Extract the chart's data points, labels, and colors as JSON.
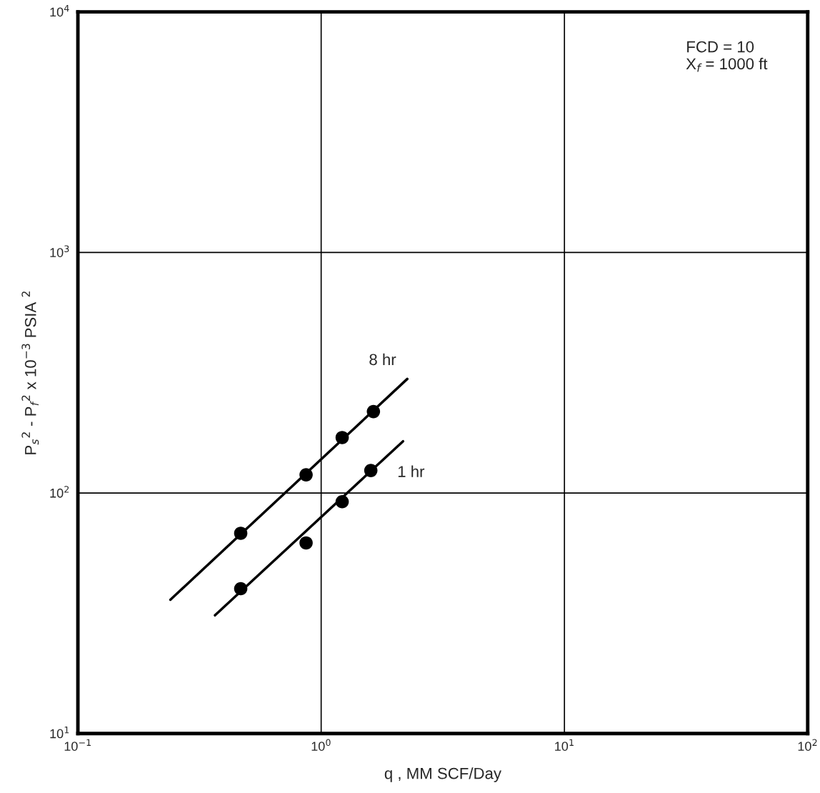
{
  "chart_data": {
    "type": "scatter",
    "xlabel": "q , MM SCF/Day",
    "ylabel": "P$_{s}$$^{2}$ - P$_{f}$$^{2}$ x 10$^{−3}$ PSIA $^{2}$",
    "log": "xy",
    "grid": true,
    "legend": false,
    "xlim": [
      0.1,
      100
    ],
    "ylim": [
      10,
      10000
    ],
    "xticks": [
      {
        "value": 0.1,
        "label": "10$^{−1}$"
      },
      {
        "value": 1,
        "label": "10$^{0}$"
      },
      {
        "value": 10,
        "label": "10$^{1}$"
      },
      {
        "value": 100,
        "label": "10$^{2}$"
      }
    ],
    "yticks": [
      {
        "value": 10,
        "label": "10$^{1}$"
      },
      {
        "value": 100,
        "label": "10$^{2}$"
      },
      {
        "value": 1000,
        "label": "10$^{3}$"
      },
      {
        "value": 10000,
        "label": "10$^{4}$"
      }
    ],
    "series": [
      {
        "color": "#000000",
        "marker": "circle",
        "x": [
          0.467,
          0.867,
          1.22,
          1.64
        ],
        "values": [
          68,
          119,
          170,
          218
        ]
      },
      {
        "color": "#000000",
        "marker": "circle",
        "x": [
          0.467,
          0.867,
          1.22,
          1.6
        ],
        "values": [
          40,
          62,
          92,
          124
        ]
      },
      {
        "type": "line",
        "name": "8 hr",
        "color": "#000000",
        "marker": "none",
        "line_style": "solid",
        "x": [
          0.24,
          2.26
        ],
        "values": [
          36,
          298
        ]
      },
      {
        "type": "line",
        "name": "1 hr",
        "color": "#000000",
        "marker": "none",
        "line_style": "solid",
        "x": [
          0.366,
          2.17
        ],
        "values": [
          31,
          164
        ]
      }
    ],
    "annotations": [
      "FCD = 10\n   X$_{f}$ = 1000 ft"
    ]
  }
}
